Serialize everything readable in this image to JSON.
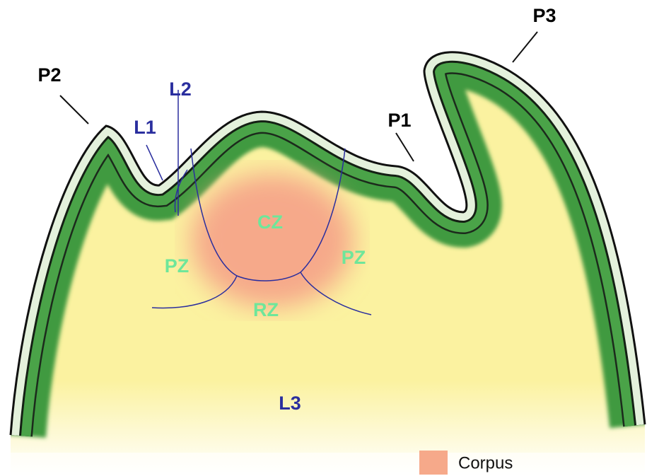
{
  "labels": [
    {
      "text": "P2",
      "color": "#000000"
    },
    {
      "text": "L2",
      "color": "#2a2e9e"
    },
    {
      "text": "L1",
      "color": "#2a2e9e"
    },
    {
      "text": "P1",
      "color": "#000000"
    },
    {
      "text": "P3",
      "color": "#000000"
    },
    {
      "text": "CZ",
      "color": "#6ee69a"
    },
    {
      "text": "PZ",
      "color": "#6ee69a"
    },
    {
      "text": "PZ",
      "color": "#6ee69a"
    },
    {
      "text": "RZ",
      "color": "#6ee69a"
    },
    {
      "text": "L3",
      "color": "#2a2e9e"
    }
  ],
  "legend": {
    "items": [
      {
        "label": "Corpus",
        "color": "#f6a98a"
      }
    ]
  }
}
